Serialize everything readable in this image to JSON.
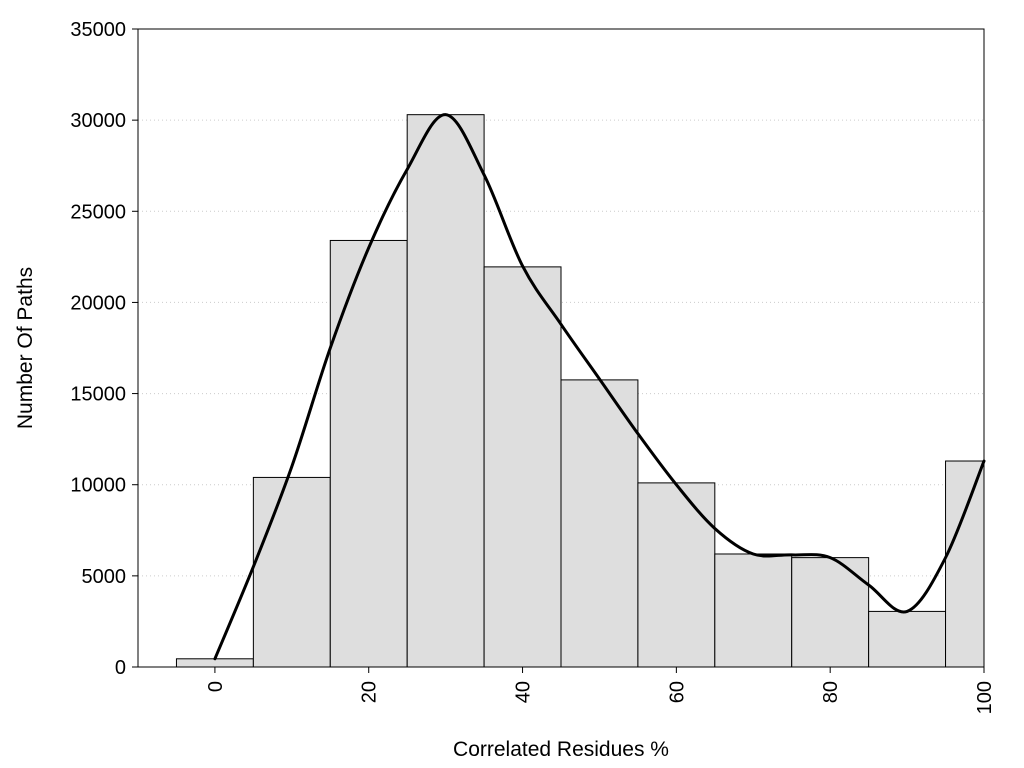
{
  "chart_data": {
    "type": "bar",
    "title": "",
    "xlabel": "Correlated Residues %",
    "ylabel": "Number Of Paths",
    "xlim": [
      -10,
      100
    ],
    "ylim": [
      0,
      35000
    ],
    "x_ticks": [
      0,
      20,
      40,
      60,
      80,
      100
    ],
    "y_ticks": [
      0,
      5000,
      10000,
      15000,
      20000,
      25000,
      30000,
      35000
    ],
    "grid": "horizontal-dotted",
    "legend": "none",
    "bar_width": 10,
    "bars": [
      {
        "x": 0,
        "value": 450
      },
      {
        "x": 10,
        "value": 10400
      },
      {
        "x": 20,
        "value": 23400
      },
      {
        "x": 30,
        "value": 30300
      },
      {
        "x": 40,
        "value": 21950
      },
      {
        "x": 50,
        "value": 15750
      },
      {
        "x": 60,
        "value": 10100
      },
      {
        "x": 70,
        "value": 6200
      },
      {
        "x": 80,
        "value": 6000
      },
      {
        "x": 90,
        "value": 3050
      },
      {
        "x": 100,
        "value": 11300
      }
    ],
    "curve": [
      {
        "x": 0,
        "y": 450
      },
      {
        "x": 5,
        "y": 5500
      },
      {
        "x": 10,
        "y": 11000
      },
      {
        "x": 15,
        "y": 17500
      },
      {
        "x": 20,
        "y": 23000
      },
      {
        "x": 25,
        "y": 27300
      },
      {
        "x": 30,
        "y": 30300
      },
      {
        "x": 35,
        "y": 27000
      },
      {
        "x": 40,
        "y": 22000
      },
      {
        "x": 45,
        "y": 18800
      },
      {
        "x": 50,
        "y": 15800
      },
      {
        "x": 55,
        "y": 12800
      },
      {
        "x": 60,
        "y": 10000
      },
      {
        "x": 65,
        "y": 7600
      },
      {
        "x": 70,
        "y": 6200
      },
      {
        "x": 75,
        "y": 6150
      },
      {
        "x": 80,
        "y": 6000
      },
      {
        "x": 85,
        "y": 4500
      },
      {
        "x": 90,
        "y": 3050
      },
      {
        "x": 95,
        "y": 6000
      },
      {
        "x": 100,
        "y": 11300
      }
    ],
    "colors": {
      "bar_fill": "#dedede",
      "bar_stroke": "#000000",
      "curve": "#000000",
      "grid": "#cccccc"
    }
  }
}
